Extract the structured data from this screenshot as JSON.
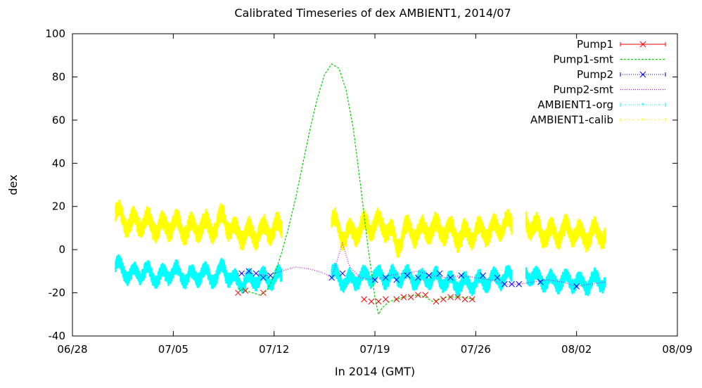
{
  "chart_data": {
    "type": "line",
    "title": "Calibrated Timeseries of dex AMBIENT1, 2014/07",
    "xlabel": "In 2014 (GMT)",
    "ylabel": "dex",
    "xlim": [
      "2014-06-28",
      "2014-08-09"
    ],
    "ylim": [
      -40,
      100
    ],
    "x_ticks": [
      "06/28",
      "07/05",
      "07/12",
      "07/19",
      "07/26",
      "08/02",
      "08/09"
    ],
    "y_ticks": [
      "-40",
      "-20",
      "0",
      "20",
      "40",
      "60",
      "80",
      "100"
    ],
    "grid": false,
    "legend_position": "top-right",
    "series": [
      {
        "name": "Pump1",
        "color": "#ff0000",
        "marker": "x",
        "style": "points",
        "points": [
          [
            "2014-07-09 12:00",
            -20
          ],
          [
            "2014-07-10 00:00",
            -19
          ],
          [
            "2014-07-11 06:00",
            -20
          ],
          [
            "2014-07-18 06:00",
            -23
          ],
          [
            "2014-07-18 18:00",
            -24
          ],
          [
            "2014-07-19 06:00",
            -24
          ],
          [
            "2014-07-19 18:00",
            -23
          ],
          [
            "2014-07-20 12:00",
            -23
          ],
          [
            "2014-07-21 00:00",
            -22
          ],
          [
            "2014-07-21 12:00",
            -22
          ],
          [
            "2014-07-22 00:00",
            -21
          ],
          [
            "2014-07-22 12:00",
            -21
          ],
          [
            "2014-07-23 06:00",
            -24
          ],
          [
            "2014-07-23 18:00",
            -23
          ],
          [
            "2014-07-24 06:00",
            -22
          ],
          [
            "2014-07-24 18:00",
            -22
          ],
          [
            "2014-07-25 06:00",
            -23
          ],
          [
            "2014-07-25 18:00",
            -23
          ]
        ]
      },
      {
        "name": "Pump1-smt",
        "color": "#00d000",
        "style": "dashed",
        "points": [
          [
            "2014-07-09 12:00",
            -18
          ],
          [
            "2014-07-10 00:00",
            -19
          ],
          [
            "2014-07-10 12:00",
            -20
          ],
          [
            "2014-07-11 00:00",
            -21
          ],
          [
            "2014-07-11 12:00",
            -19
          ],
          [
            "2014-07-12 00:00",
            -12
          ],
          [
            "2014-07-12 12:00",
            -2
          ],
          [
            "2014-07-13 00:00",
            10
          ],
          [
            "2014-07-13 12:00",
            24
          ],
          [
            "2014-07-14 00:00",
            40
          ],
          [
            "2014-07-14 12:00",
            56
          ],
          [
            "2014-07-15 00:00",
            70
          ],
          [
            "2014-07-15 12:00",
            81
          ],
          [
            "2014-07-16 00:00",
            86
          ],
          [
            "2014-07-16 12:00",
            84
          ],
          [
            "2014-07-17 00:00",
            74
          ],
          [
            "2014-07-17 12:00",
            56
          ],
          [
            "2014-07-18 00:00",
            30
          ],
          [
            "2014-07-18 12:00",
            2
          ],
          [
            "2014-07-19 00:00",
            -22
          ],
          [
            "2014-07-19 06:00",
            -30
          ],
          [
            "2014-07-19 12:00",
            -27
          ],
          [
            "2014-07-20 00:00",
            -24
          ],
          [
            "2014-07-21 00:00",
            -22
          ],
          [
            "2014-07-22 00:00",
            -21
          ],
          [
            "2014-07-22 12:00",
            -22
          ],
          [
            "2014-07-23 00:00",
            -24
          ],
          [
            "2014-07-23 12:00",
            -23
          ],
          [
            "2014-07-24 00:00",
            -22
          ],
          [
            "2014-07-25 00:00",
            -22
          ],
          [
            "2014-07-26 00:00",
            -23
          ]
        ]
      },
      {
        "name": "Pump2",
        "color": "#0000ff",
        "marker": "x",
        "style": "points",
        "points": [
          [
            "2014-07-09 18:00",
            -11
          ],
          [
            "2014-07-10 06:00",
            -10
          ],
          [
            "2014-07-10 18:00",
            -11
          ],
          [
            "2014-07-11 06:00",
            -13
          ],
          [
            "2014-07-11 18:00",
            -12
          ],
          [
            "2014-07-16 00:00",
            -13
          ],
          [
            "2014-07-16 18:00",
            -11
          ],
          [
            "2014-07-19 00:00",
            -14
          ],
          [
            "2014-07-19 18:00",
            -13
          ],
          [
            "2014-07-20 12:00",
            -14
          ],
          [
            "2014-07-21 06:00",
            -12
          ],
          [
            "2014-07-22 00:00",
            -13
          ],
          [
            "2014-07-22 18:00",
            -12
          ],
          [
            "2014-07-23 12:00",
            -11
          ],
          [
            "2014-07-24 06:00",
            -13
          ],
          [
            "2014-07-25 00:00",
            -12
          ],
          [
            "2014-07-26 12:00",
            -12
          ],
          [
            "2014-07-27 12:00",
            -13
          ],
          [
            "2014-07-28 00:00",
            -16
          ],
          [
            "2014-07-28 12:00",
            -16
          ],
          [
            "2014-07-29 00:00",
            -16
          ],
          [
            "2014-07-30 12:00",
            -15
          ],
          [
            "2014-08-02 00:00",
            -17
          ]
        ]
      },
      {
        "name": "Pump2-smt",
        "color": "#cc00ff",
        "style": "dotted",
        "points": [
          [
            "2014-07-09 12:00",
            -11
          ],
          [
            "2014-07-10 12:00",
            -11
          ],
          [
            "2014-07-11 12:00",
            -12
          ],
          [
            "2014-07-12 12:00",
            -10
          ],
          [
            "2014-07-13 12:00",
            -8
          ],
          [
            "2014-07-14 12:00",
            -9
          ],
          [
            "2014-07-15 12:00",
            -11
          ],
          [
            "2014-07-16 00:00",
            -13
          ],
          [
            "2014-07-16 18:00",
            3
          ],
          [
            "2014-07-17 06:00",
            -8
          ],
          [
            "2014-07-18 00:00",
            -13
          ],
          [
            "2014-07-19 00:00",
            -14
          ],
          [
            "2014-07-20 00:00",
            -12
          ],
          [
            "2014-07-21 00:00",
            -11
          ],
          [
            "2014-07-22 00:00",
            -10
          ],
          [
            "2014-07-23 00:00",
            -12
          ],
          [
            "2014-07-24 00:00",
            -13
          ],
          [
            "2014-07-25 00:00",
            -12
          ],
          [
            "2014-07-26 00:00",
            -13
          ],
          [
            "2014-07-27 00:00",
            -14
          ],
          [
            "2014-07-28 00:00",
            -16
          ],
          [
            "2014-07-29 00:00",
            -16
          ],
          [
            "2014-07-30 00:00",
            -15
          ],
          [
            "2014-07-31 00:00",
            -14
          ],
          [
            "2014-08-01 00:00",
            -15
          ],
          [
            "2014-08-02 00:00",
            -17
          ],
          [
            "2014-08-03 00:00",
            -16
          ],
          [
            "2014-08-04 00:00",
            -15
          ]
        ]
      },
      {
        "name": "AMBIENT1-org",
        "color": "#00ffff",
        "style": "dense-band",
        "center": [
          [
            "2014-07-01 00:00",
            -7
          ],
          [
            "2014-07-02 00:00",
            -12
          ],
          [
            "2014-07-03 00:00",
            -10
          ],
          [
            "2014-07-04 00:00",
            -13
          ],
          [
            "2014-07-05 00:00",
            -10
          ],
          [
            "2014-07-06 00:00",
            -13
          ],
          [
            "2014-07-07 00:00",
            -11
          ],
          [
            "2014-07-08 00:00",
            -13
          ],
          [
            "2014-07-08 12:00",
            -8
          ],
          [
            "2014-07-09 00:00",
            -14
          ],
          [
            "2014-07-10 00:00",
            -15
          ],
          [
            "2014-07-11 00:00",
            -13
          ],
          [
            "2014-07-12 00:00",
            -14
          ],
          [
            "2014-07-12 12:00",
            -12
          ],
          [
            "2014-07-16 00:00",
            -11
          ],
          [
            "2014-07-17 00:00",
            -15
          ],
          [
            "2014-07-18 00:00",
            -13
          ],
          [
            "2014-07-19 00:00",
            -12
          ],
          [
            "2014-07-20 00:00",
            -13
          ],
          [
            "2014-07-21 00:00",
            -12
          ],
          [
            "2014-07-22 00:00",
            -14
          ],
          [
            "2014-07-23 00:00",
            -13
          ],
          [
            "2014-07-24 00:00",
            -15
          ],
          [
            "2014-07-25 00:00",
            -16
          ],
          [
            "2014-07-26 00:00",
            -15
          ],
          [
            "2014-07-27 00:00",
            -14
          ],
          [
            "2014-07-28 00:00",
            -13
          ],
          [
            "2014-07-28 12:00",
            -12
          ],
          [
            "2014-07-29 12:00",
            -11
          ],
          [
            "2014-07-30 12:00",
            -14
          ],
          [
            "2014-07-31 12:00",
            -15
          ],
          [
            "2014-08-01 12:00",
            -14
          ],
          [
            "2014-08-02 12:00",
            -16
          ],
          [
            "2014-08-03 12:00",
            -14
          ],
          [
            "2014-08-04 00:00",
            -15
          ]
        ],
        "gaps": [
          [
            "2014-07-12 12:00",
            "2014-07-16 00:00"
          ],
          [
            "2014-07-28 12:00",
            "2014-07-29 12:00"
          ]
        ],
        "amplitude": 3
      },
      {
        "name": "AMBIENT1-calib",
        "color": "#ffff00",
        "style": "dense-band",
        "center": [
          [
            "2014-07-01 00:00",
            17
          ],
          [
            "2014-07-02 00:00",
            12
          ],
          [
            "2014-07-03 00:00",
            13
          ],
          [
            "2014-07-04 00:00",
            10
          ],
          [
            "2014-07-05 00:00",
            12
          ],
          [
            "2014-07-06 00:00",
            9
          ],
          [
            "2014-07-07 00:00",
            11
          ],
          [
            "2014-07-08 00:00",
            10
          ],
          [
            "2014-07-08 12:00",
            16
          ],
          [
            "2014-07-09 00:00",
            9
          ],
          [
            "2014-07-10 00:00",
            7
          ],
          [
            "2014-07-11 00:00",
            8
          ],
          [
            "2014-07-12 00:00",
            10
          ],
          [
            "2014-07-12 12:00",
            9
          ],
          [
            "2014-07-16 00:00",
            13
          ],
          [
            "2014-07-17 00:00",
            6
          ],
          [
            "2014-07-18 00:00",
            10
          ],
          [
            "2014-07-19 00:00",
            12
          ],
          [
            "2014-07-20 00:00",
            10
          ],
          [
            "2014-07-20 12:00",
            1
          ],
          [
            "2014-07-21 00:00",
            9
          ],
          [
            "2014-07-22 00:00",
            8
          ],
          [
            "2014-07-23 00:00",
            10
          ],
          [
            "2014-07-24 00:00",
            9
          ],
          [
            "2014-07-25 00:00",
            6
          ],
          [
            "2014-07-26 00:00",
            8
          ],
          [
            "2014-07-27 00:00",
            9
          ],
          [
            "2014-07-28 00:00",
            12
          ],
          [
            "2014-07-28 12:00",
            11
          ],
          [
            "2014-07-29 12:00",
            13
          ],
          [
            "2014-07-30 12:00",
            8
          ],
          [
            "2014-07-31 12:00",
            7
          ],
          [
            "2014-08-01 12:00",
            9
          ],
          [
            "2014-08-02 12:00",
            6
          ],
          [
            "2014-08-03 12:00",
            8
          ],
          [
            "2014-08-04 00:00",
            7
          ]
        ],
        "gaps": [
          [
            "2014-07-12 12:00",
            "2014-07-16 00:00"
          ],
          [
            "2014-07-28 12:00",
            "2014-07-29 12:00"
          ]
        ],
        "amplitude": 4
      }
    ]
  }
}
